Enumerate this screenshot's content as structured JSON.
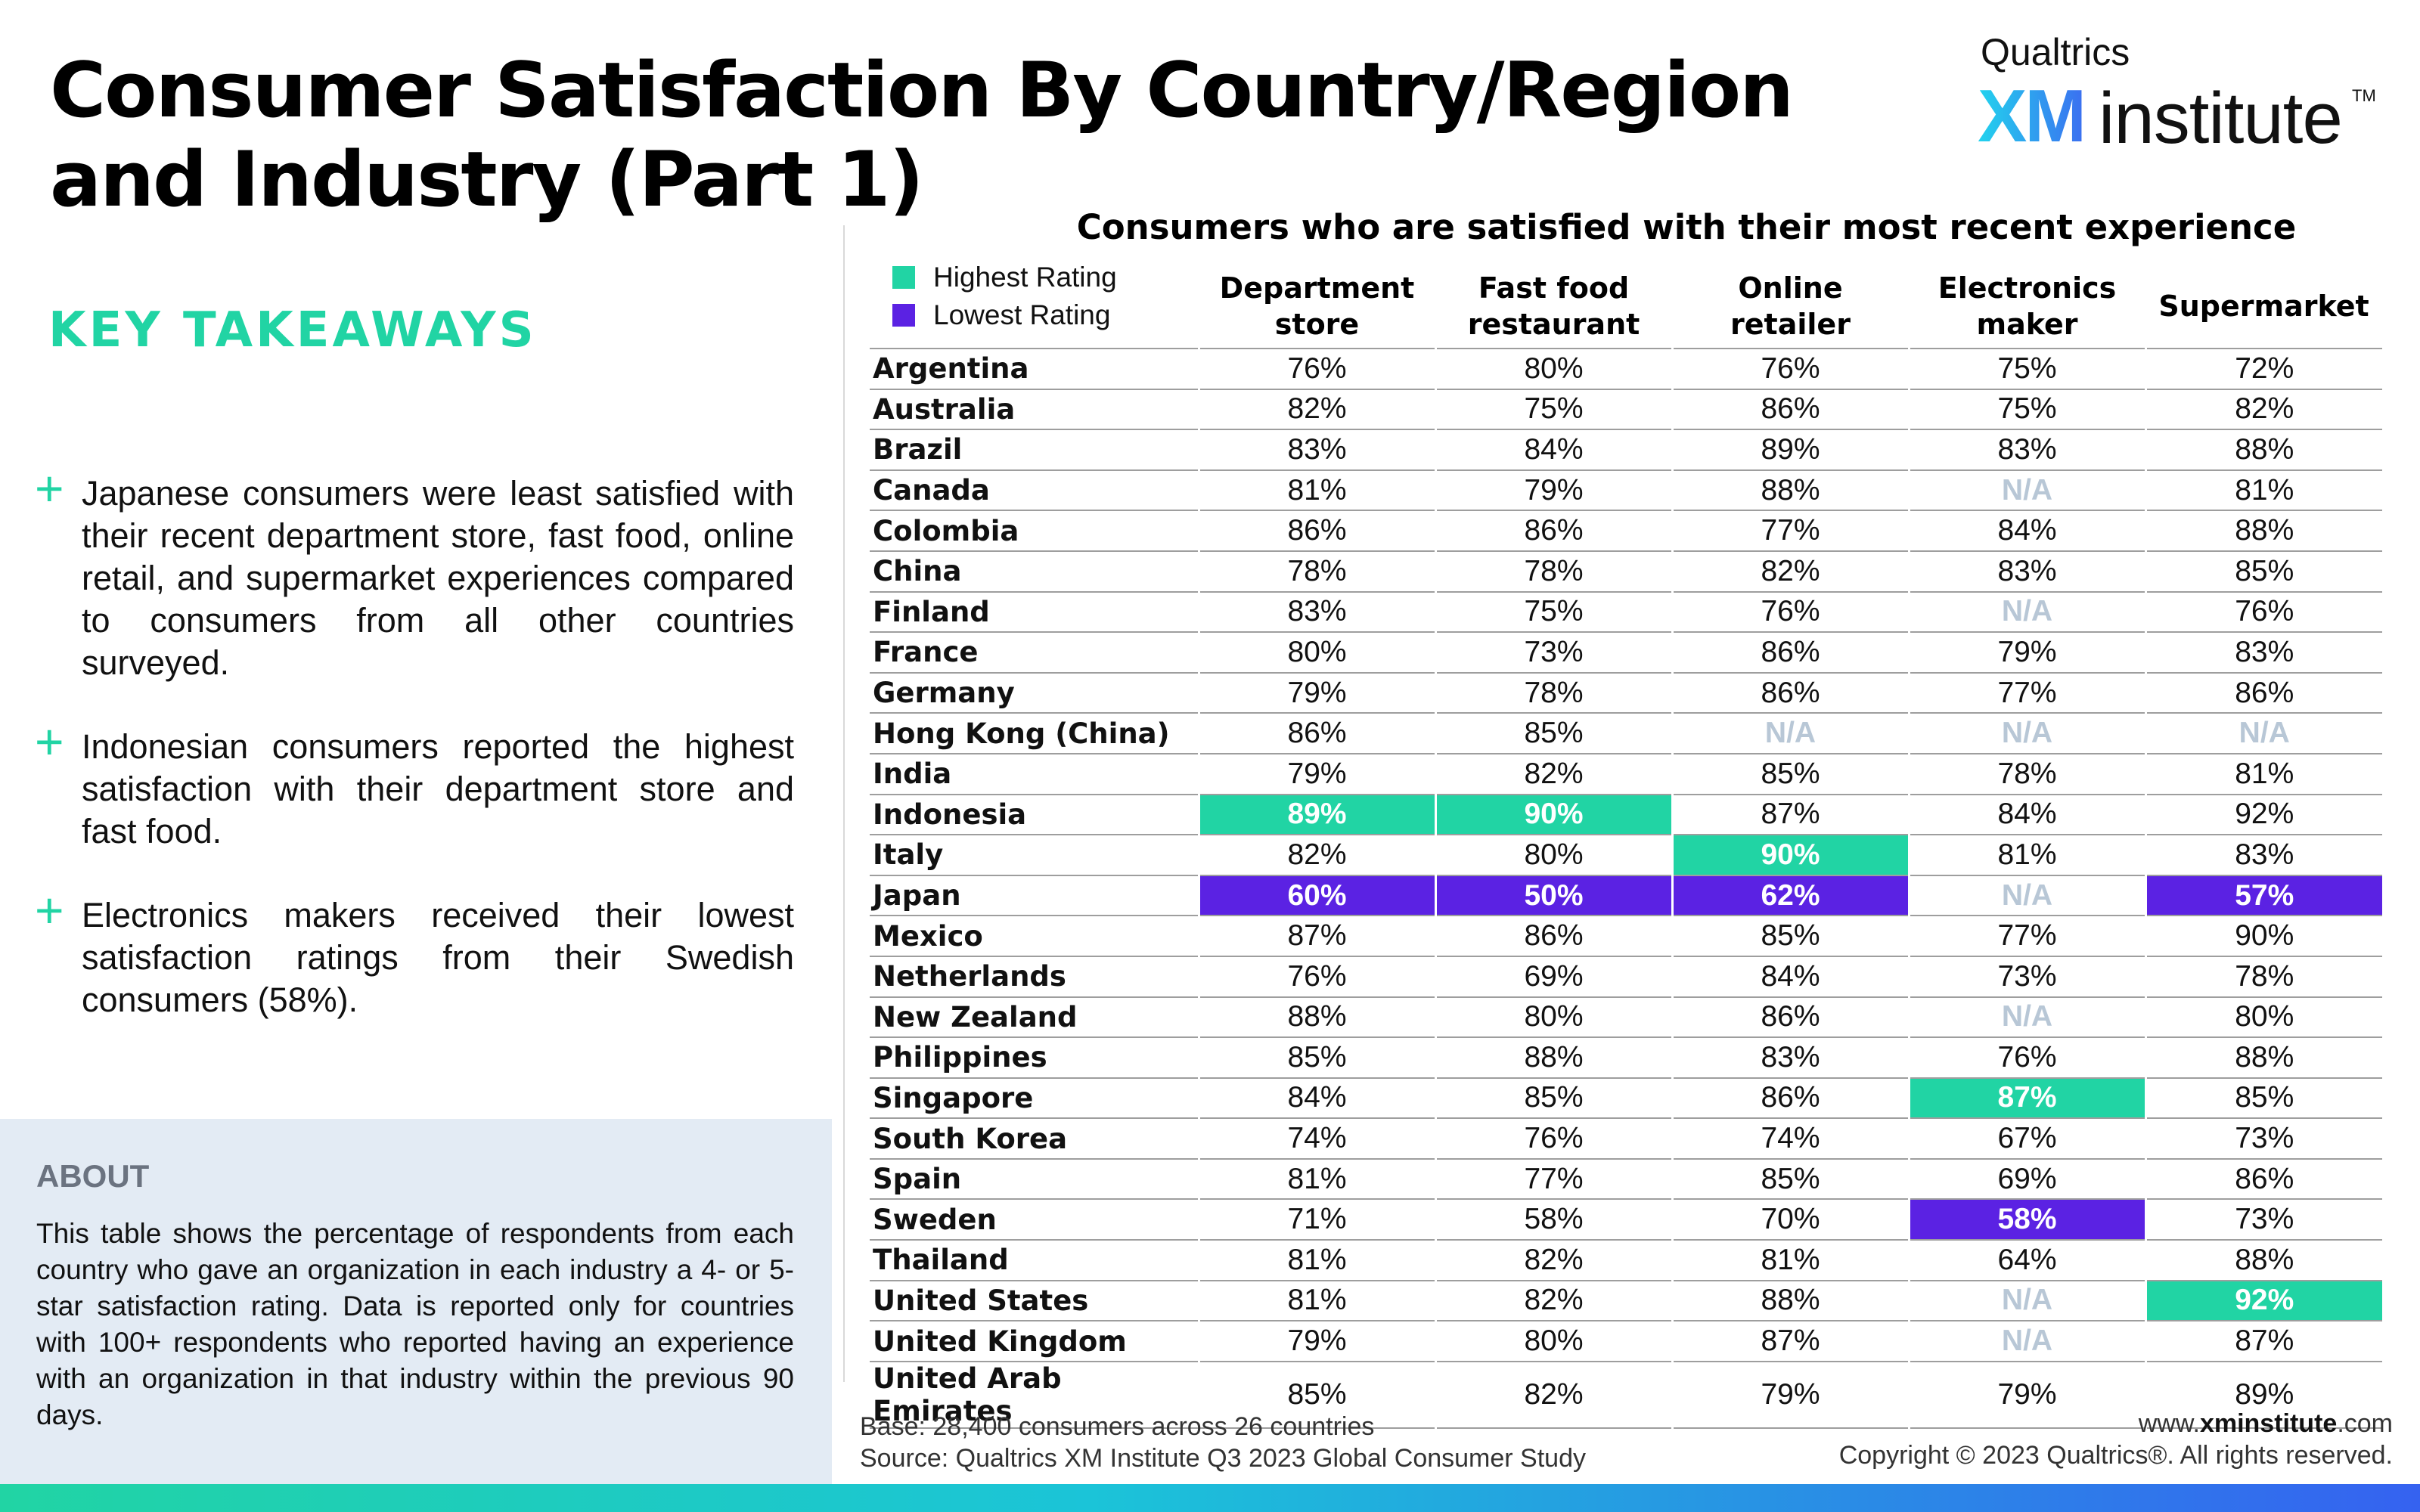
{
  "header": {
    "title": "Consumer Satisfaction By Country/Region and Industry (Part 1)"
  },
  "logo": {
    "top": "Qualtrics",
    "xm": "XM",
    "institute": "institute",
    "tm": "TM"
  },
  "takeaways": {
    "heading": "KEY TAKEAWAYS",
    "items": [
      "Japanese consumers were least satisfied with their recent department store, fast food, online retail, and supermarket experiences compared to consumers from all other countries surveyed.",
      "Indonesian consumers reported the highest satisfaction with their department store and fast food.",
      "Electronics makers received their lowest satisfaction ratings from their Swedish consumers (58%)."
    ]
  },
  "about": {
    "heading": "ABOUT",
    "text": "This table shows the percentage of respondents from each country who gave an organization in each industry a 4- or 5-star satisfaction rating. Data is reported only for countries with 100+ respondents who reported having an experience with an organization in that industry within the previous 90 days."
  },
  "footer": {
    "base": "Base: 28,400 consumers across 26 countries",
    "source": "Source: Qualtrics XM Institute Q3 2023 Global Consumer Study",
    "url_prefix": "www.",
    "url_bold": "xminstitute",
    "url_suffix": ".com",
    "copyright": "Copyright © 2023 Qualtrics®. All rights reserved."
  },
  "colors": {
    "accent_green": "#21d4a4",
    "highest": "#21d4a4",
    "lowest": "#5b22e3",
    "na_text": "#b8c7d6",
    "about_bg": "#e3ebf4"
  },
  "chart_data": {
    "type": "table",
    "title": "Consumers who are satisfied with their most recent experience",
    "legend": [
      {
        "label": "Highest Rating",
        "color": "#21d4a4",
        "key": "hi"
      },
      {
        "label": "Lowest Rating",
        "color": "#5b22e3",
        "key": "lo"
      }
    ],
    "columns": [
      [
        "Department",
        "store"
      ],
      [
        "Fast food",
        "restaurant"
      ],
      [
        "Online",
        "retailer"
      ],
      [
        "Electronics",
        "maker"
      ],
      [
        "Supermarket"
      ]
    ],
    "rows": [
      {
        "country": "Argentina",
        "values": [
          "76%",
          "80%",
          "76%",
          "75%",
          "72%"
        ],
        "flags": [
          "",
          "",
          "",
          "",
          ""
        ]
      },
      {
        "country": "Australia",
        "values": [
          "82%",
          "75%",
          "86%",
          "75%",
          "82%"
        ],
        "flags": [
          "",
          "",
          "",
          "",
          ""
        ]
      },
      {
        "country": "Brazil",
        "values": [
          "83%",
          "84%",
          "89%",
          "83%",
          "88%"
        ],
        "flags": [
          "",
          "",
          "",
          "",
          ""
        ]
      },
      {
        "country": "Canada",
        "values": [
          "81%",
          "79%",
          "88%",
          "N/A",
          "81%"
        ],
        "flags": [
          "",
          "",
          "",
          "",
          ""
        ]
      },
      {
        "country": "Colombia",
        "values": [
          "86%",
          "86%",
          "77%",
          "84%",
          "88%"
        ],
        "flags": [
          "",
          "",
          "",
          "",
          ""
        ]
      },
      {
        "country": "China",
        "values": [
          "78%",
          "78%",
          "82%",
          "83%",
          "85%"
        ],
        "flags": [
          "",
          "",
          "",
          "",
          ""
        ]
      },
      {
        "country": "Finland",
        "values": [
          "83%",
          "75%",
          "76%",
          "N/A",
          "76%"
        ],
        "flags": [
          "",
          "",
          "",
          "",
          ""
        ]
      },
      {
        "country": "France",
        "values": [
          "80%",
          "73%",
          "86%",
          "79%",
          "83%"
        ],
        "flags": [
          "",
          "",
          "",
          "",
          ""
        ]
      },
      {
        "country": "Germany",
        "values": [
          "79%",
          "78%",
          "86%",
          "77%",
          "86%"
        ],
        "flags": [
          "",
          "",
          "",
          "",
          ""
        ]
      },
      {
        "country": "Hong Kong (China)",
        "values": [
          "86%",
          "85%",
          "N/A",
          "N/A",
          "N/A"
        ],
        "flags": [
          "",
          "",
          "",
          "",
          ""
        ]
      },
      {
        "country": "India",
        "values": [
          "79%",
          "82%",
          "85%",
          "78%",
          "81%"
        ],
        "flags": [
          "",
          "",
          "",
          "",
          ""
        ]
      },
      {
        "country": "Indonesia",
        "values": [
          "89%",
          "90%",
          "87%",
          "84%",
          "92%"
        ],
        "flags": [
          "hi",
          "hi",
          "",
          "",
          ""
        ]
      },
      {
        "country": "Italy",
        "values": [
          "82%",
          "80%",
          "90%",
          "81%",
          "83%"
        ],
        "flags": [
          "",
          "",
          "hi",
          "",
          ""
        ]
      },
      {
        "country": "Japan",
        "values": [
          "60%",
          "50%",
          "62%",
          "N/A",
          "57%"
        ],
        "flags": [
          "lo",
          "lo",
          "lo",
          "",
          "lo"
        ]
      },
      {
        "country": "Mexico",
        "values": [
          "87%",
          "86%",
          "85%",
          "77%",
          "90%"
        ],
        "flags": [
          "",
          "",
          "",
          "",
          ""
        ]
      },
      {
        "country": "Netherlands",
        "values": [
          "76%",
          "69%",
          "84%",
          "73%",
          "78%"
        ],
        "flags": [
          "",
          "",
          "",
          "",
          ""
        ]
      },
      {
        "country": "New Zealand",
        "values": [
          "88%",
          "80%",
          "86%",
          "N/A",
          "80%"
        ],
        "flags": [
          "",
          "",
          "",
          "",
          ""
        ]
      },
      {
        "country": "Philippines",
        "values": [
          "85%",
          "88%",
          "83%",
          "76%",
          "88%"
        ],
        "flags": [
          "",
          "",
          "",
          "",
          ""
        ]
      },
      {
        "country": "Singapore",
        "values": [
          "84%",
          "85%",
          "86%",
          "87%",
          "85%"
        ],
        "flags": [
          "",
          "",
          "",
          "hi",
          ""
        ]
      },
      {
        "country": "South Korea",
        "values": [
          "74%",
          "76%",
          "74%",
          "67%",
          "73%"
        ],
        "flags": [
          "",
          "",
          "",
          "",
          ""
        ]
      },
      {
        "country": "Spain",
        "values": [
          "81%",
          "77%",
          "85%",
          "69%",
          "86%"
        ],
        "flags": [
          "",
          "",
          "",
          "",
          ""
        ]
      },
      {
        "country": "Sweden",
        "values": [
          "71%",
          "58%",
          "70%",
          "58%",
          "73%"
        ],
        "flags": [
          "",
          "",
          "",
          "lo",
          ""
        ]
      },
      {
        "country": "Thailand",
        "values": [
          "81%",
          "82%",
          "81%",
          "64%",
          "88%"
        ],
        "flags": [
          "",
          "",
          "",
          "",
          ""
        ]
      },
      {
        "country": "United States",
        "values": [
          "81%",
          "82%",
          "88%",
          "N/A",
          "92%"
        ],
        "flags": [
          "",
          "",
          "",
          "",
          "hi"
        ]
      },
      {
        "country": "United Kingdom",
        "values": [
          "79%",
          "80%",
          "87%",
          "N/A",
          "87%"
        ],
        "flags": [
          "",
          "",
          "",
          "",
          ""
        ]
      },
      {
        "country": "United Arab Emirates",
        "values": [
          "85%",
          "82%",
          "79%",
          "79%",
          "89%"
        ],
        "flags": [
          "",
          "",
          "",
          "",
          ""
        ]
      }
    ]
  }
}
